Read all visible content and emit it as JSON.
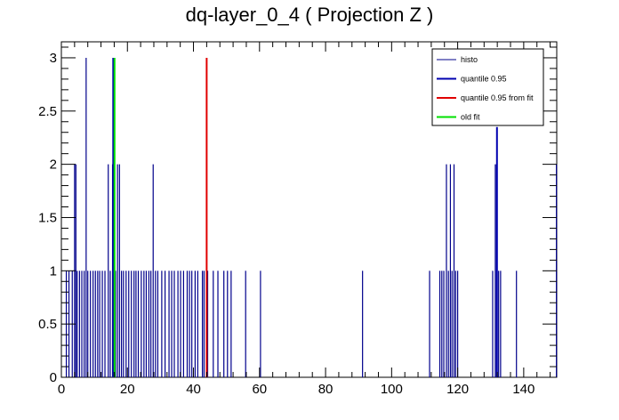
{
  "chart_data": {
    "type": "bar",
    "title": "dq-layer_0_4 ( Projection Z )",
    "xlabel": "",
    "ylabel": "",
    "xlim": [
      0,
      150
    ],
    "ylim": [
      0,
      3.15
    ],
    "x_ticks": [
      0,
      20,
      40,
      60,
      80,
      100,
      120,
      140
    ],
    "y_ticks": [
      0,
      0.5,
      1,
      1.5,
      2,
      2.5,
      3
    ],
    "x_tick_labels": [
      "0",
      "20",
      "40",
      "60",
      "80",
      "100",
      "120",
      "140"
    ],
    "y_tick_labels": [
      "0",
      "0.5",
      "1",
      "1.5",
      "2",
      "2.5",
      "3"
    ],
    "grid": false,
    "legend_position": "top-right",
    "legend": [
      {
        "label": "histo",
        "color": "#00008b"
      },
      {
        "label": "quantile 0.95",
        "color": "#0000b0"
      },
      {
        "label": "quantile 0.95 from fit",
        "color": "#e00000"
      },
      {
        "label": "old fit",
        "color": "#00e000"
      }
    ],
    "series": [
      {
        "name": "histo",
        "color": "#00008b",
        "style": "spikes",
        "points": [
          [
            1.5,
            1
          ],
          [
            2.3,
            1
          ],
          [
            3.3,
            1
          ],
          [
            4.0,
            2
          ],
          [
            4.4,
            2
          ],
          [
            4.8,
            1
          ],
          [
            5.5,
            1
          ],
          [
            6.2,
            1
          ],
          [
            6.9,
            1
          ],
          [
            7.5,
            3
          ],
          [
            8.0,
            1
          ],
          [
            8.8,
            1
          ],
          [
            9.6,
            1
          ],
          [
            10.3,
            1
          ],
          [
            11.0,
            1
          ],
          [
            11.6,
            1
          ],
          [
            12.4,
            1
          ],
          [
            13.2,
            1
          ],
          [
            14.2,
            2
          ],
          [
            14.8,
            1
          ],
          [
            15.5,
            2
          ],
          [
            16.4,
            1
          ],
          [
            17.0,
            2
          ],
          [
            17.6,
            2
          ],
          [
            18.2,
            1
          ],
          [
            18.8,
            1
          ],
          [
            19.6,
            1
          ],
          [
            20.4,
            1
          ],
          [
            21.2,
            1
          ],
          [
            22.0,
            1
          ],
          [
            22.6,
            1
          ],
          [
            23.3,
            1
          ],
          [
            24.2,
            1
          ],
          [
            25.0,
            1
          ],
          [
            25.7,
            1
          ],
          [
            26.5,
            1
          ],
          [
            27.1,
            1
          ],
          [
            27.8,
            2
          ],
          [
            28.5,
            1
          ],
          [
            29.2,
            1
          ],
          [
            30.4,
            1
          ],
          [
            31.4,
            1
          ],
          [
            32.6,
            1
          ],
          [
            33.4,
            1
          ],
          [
            34.2,
            1
          ],
          [
            35.3,
            1
          ],
          [
            36.1,
            1
          ],
          [
            37.0,
            1
          ],
          [
            38.1,
            1
          ],
          [
            38.8,
            1
          ],
          [
            39.5,
            1
          ],
          [
            40.5,
            1
          ],
          [
            41.3,
            1
          ],
          [
            42.7,
            1
          ],
          [
            43.2,
            1
          ],
          [
            44.3,
            1
          ],
          [
            46.0,
            1
          ],
          [
            47.4,
            1
          ],
          [
            49.2,
            1
          ],
          [
            50.3,
            1
          ],
          [
            51.4,
            1
          ],
          [
            55.8,
            1
          ],
          [
            60.3,
            1
          ],
          [
            91.2,
            1
          ],
          [
            111.5,
            1
          ],
          [
            114.6,
            1
          ],
          [
            115.2,
            1
          ],
          [
            115.8,
            1
          ],
          [
            116.6,
            2
          ],
          [
            117.2,
            1
          ],
          [
            117.8,
            2
          ],
          [
            118.3,
            1
          ],
          [
            118.9,
            2
          ],
          [
            119.4,
            1
          ],
          [
            120.0,
            1
          ],
          [
            130.6,
            1
          ],
          [
            131.4,
            2
          ],
          [
            131.8,
            2
          ],
          [
            132.4,
            1
          ],
          [
            133.0,
            1
          ],
          [
            137.8,
            1
          ],
          [
            149.9,
            2
          ]
        ]
      }
    ],
    "vertical_lines": [
      {
        "name": "quantile 0.95",
        "x": 15.7,
        "y": 3,
        "color": "#0000b0"
      },
      {
        "name": "old fit",
        "x": 16.1,
        "y": 3,
        "color": "#00e000"
      },
      {
        "name": "quantile 0.95 from fit",
        "x": 44.0,
        "y": 3,
        "color": "#e00000"
      },
      {
        "name": "quantile 0.95",
        "x": 131.9,
        "y": 2.35,
        "color": "#0000b0"
      }
    ]
  }
}
